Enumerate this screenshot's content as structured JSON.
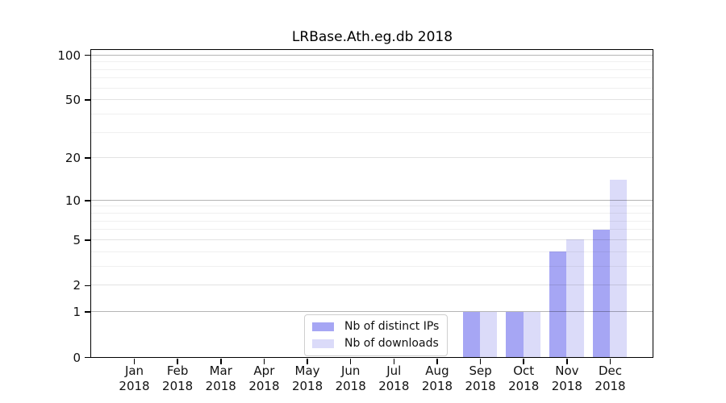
{
  "chart_data": {
    "type": "bar",
    "title": "LRBase.Ath.eg.db 2018",
    "categories": [
      "Jan 2018",
      "Feb 2018",
      "Mar 2018",
      "Apr 2018",
      "May 2018",
      "Jun 2018",
      "Jul 2018",
      "Aug 2018",
      "Sep 2018",
      "Oct 2018",
      "Nov 2018",
      "Dec 2018"
    ],
    "x_tick_months": [
      "Jan",
      "Feb",
      "Mar",
      "Apr",
      "May",
      "Jun",
      "Jul",
      "Aug",
      "Sep",
      "Oct",
      "Nov",
      "Dec"
    ],
    "x_tick_year": "2018",
    "series": [
      {
        "name": "Nb of distinct IPs",
        "color": "#a6a6f4",
        "values": [
          0,
          0,
          0,
          0,
          0,
          0,
          0,
          0,
          1,
          1,
          4,
          6
        ]
      },
      {
        "name": "Nb of downloads",
        "color": "#dbdbf9",
        "values": [
          0,
          0,
          0,
          0,
          0,
          0,
          0,
          0,
          1,
          1,
          5,
          14
        ]
      }
    ],
    "yscale": "log1p",
    "y_ticks": [
      0,
      1,
      2,
      5,
      10,
      20,
      50,
      100
    ],
    "y_major_gridlines": [
      1,
      10,
      100
    ],
    "ylim": [
      0,
      108
    ],
    "xlabel": "",
    "ylabel": "",
    "grid": true,
    "legend_position": "inside-bottom-center"
  }
}
